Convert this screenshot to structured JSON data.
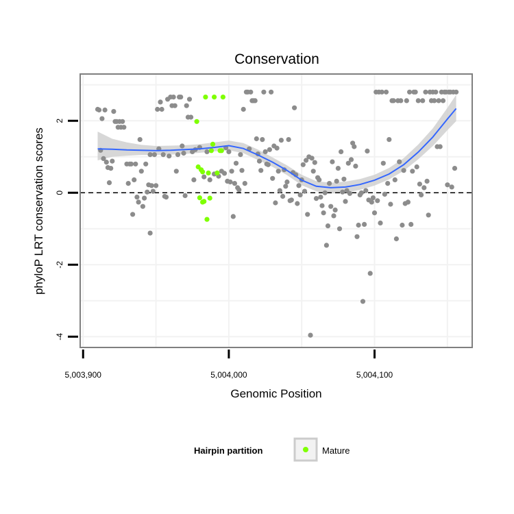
{
  "chart_data": {
    "type": "scatter",
    "title": "Conservation",
    "xlabel": "Genomic Position",
    "ylabel": "phyloP LRT conservation scores",
    "xlim": [
      5003898,
      5004167
    ],
    "ylim": [
      -4.3,
      3.3
    ],
    "x_ticks": [
      {
        "value": 5003900,
        "label": "5,003,900"
      },
      {
        "value": 5004000,
        "label": "5,004,000"
      },
      {
        "value": 5004100,
        "label": "5,004,100"
      }
    ],
    "y_ticks": [
      {
        "value": -4,
        "label": "-4"
      },
      {
        "value": -2,
        "label": "-2"
      },
      {
        "value": 0,
        "label": "0"
      },
      {
        "value": 2,
        "label": "2"
      }
    ],
    "grid": true,
    "reference_line": {
      "y": 0,
      "style": "dashed"
    },
    "colors": {
      "other": "#8c8c8c",
      "mature": "#7fff00",
      "smooth_line": "#3366ff",
      "ribbon": "#d0d0d0",
      "panel_border": "#7f7f7f",
      "grid": "#f2f2f2"
    },
    "legend": {
      "title": "Hairpin partition",
      "entries": [
        "Mature"
      ],
      "position": "bottom"
    },
    "series": [
      {
        "name": "Mature",
        "color": "#7fff00",
        "points": [
          [
            5003978,
            1.98
          ],
          [
            5003979,
            0.72
          ],
          [
            5003980,
            -0.14
          ],
          [
            5003981,
            0.64
          ],
          [
            5003982,
            0.58
          ],
          [
            5003982,
            -0.26
          ],
          [
            5003983,
            -0.24
          ],
          [
            5003984,
            2.66
          ],
          [
            5003985,
            -0.74
          ],
          [
            5003986,
            0.55
          ],
          [
            5003987,
            -0.15
          ],
          [
            5003988,
            1.17
          ],
          [
            5003989,
            1.35
          ],
          [
            5003990,
            2.66
          ],
          [
            5003992,
            0.55
          ],
          [
            5003994,
            1.17
          ],
          [
            5003995,
            1.17
          ],
          [
            5003996,
            2.66
          ]
        ]
      },
      {
        "name": "",
        "color": "#8c8c8c",
        "points": [
          [
            5003910,
            2.32
          ],
          [
            5003911,
            2.3
          ],
          [
            5003912,
            1.18
          ],
          [
            5003913,
            2.06
          ],
          [
            5003914,
            0.95
          ],
          [
            5003915,
            2.3
          ],
          [
            5003916,
            0.85
          ],
          [
            5003917,
            0.7
          ],
          [
            5003918,
            0.28
          ],
          [
            5003919,
            0.68
          ],
          [
            5003920,
            0.88
          ],
          [
            5003921,
            2.26
          ],
          [
            5003922,
            1.98
          ],
          [
            5003923,
            1.98
          ],
          [
            5003924,
            1.82
          ],
          [
            5003925,
            1.98
          ],
          [
            5003926,
            1.82
          ],
          [
            5003927,
            1.98
          ],
          [
            5003928,
            1.82
          ],
          [
            5003930,
            0.8
          ],
          [
            5003931,
            0.26
          ],
          [
            5003932,
            0.8
          ],
          [
            5003933,
            0.8
          ],
          [
            5003934,
            -0.6
          ],
          [
            5003935,
            0.36
          ],
          [
            5003936,
            0.8
          ],
          [
            5003937,
            -0.12
          ],
          [
            5003938,
            -0.26
          ],
          [
            5003939,
            1.48
          ],
          [
            5003940,
            0.6
          ],
          [
            5003941,
            -0.38
          ],
          [
            5003942,
            -0.15
          ],
          [
            5003943,
            0.8
          ],
          [
            5003944,
            0.02
          ],
          [
            5003945,
            0.22
          ],
          [
            5003946,
            1.06
          ],
          [
            5003946,
            -1.12
          ],
          [
            5003947,
            0.2
          ],
          [
            5003948,
            0.04
          ],
          [
            5003949,
            1.06
          ],
          [
            5003950,
            0.2
          ],
          [
            5003951,
            2.32
          ],
          [
            5003952,
            1.22
          ],
          [
            5003953,
            2.52
          ],
          [
            5003954,
            2.32
          ],
          [
            5003955,
            1.06
          ],
          [
            5003956,
            -0.1
          ],
          [
            5003957,
            -0.12
          ],
          [
            5003958,
            2.6
          ],
          [
            5003959,
            1.02
          ],
          [
            5003960,
            2.66
          ],
          [
            5003961,
            2.42
          ],
          [
            5003962,
            2.66
          ],
          [
            5003963,
            2.42
          ],
          [
            5003964,
            0.6
          ],
          [
            5003965,
            1.06
          ],
          [
            5003966,
            2.66
          ],
          [
            5003967,
            2.66
          ],
          [
            5003968,
            1.3
          ],
          [
            5003969,
            1.1
          ],
          [
            5003970,
            -0.08
          ],
          [
            5003971,
            2.42
          ],
          [
            5003972,
            2.1
          ],
          [
            5003973,
            2.6
          ],
          [
            5003974,
            2.1
          ],
          [
            5003975,
            1.14
          ],
          [
            5003976,
            0.36
          ],
          [
            5003977,
            1.2
          ],
          [
            5003980,
            1.26
          ],
          [
            5003983,
            0.44
          ],
          [
            5003985,
            1.14
          ],
          [
            5003987,
            0.36
          ],
          [
            5003990,
            0.52
          ],
          [
            5003993,
            0.46
          ],
          [
            5003995,
            0.6
          ],
          [
            5003997,
            0.54
          ],
          [
            5003998,
            1.25
          ],
          [
            5003999,
            0.32
          ],
          [
            5004000,
            1.14
          ],
          [
            5004001,
            0.3
          ],
          [
            5004002,
            0.6
          ],
          [
            5004003,
            -0.66
          ],
          [
            5004004,
            0.26
          ],
          [
            5004005,
            0.82
          ],
          [
            5004006,
            0.14
          ],
          [
            5004007,
            0.08
          ],
          [
            5004008,
            1.06
          ],
          [
            5004009,
            0.62
          ],
          [
            5004010,
            2.32
          ],
          [
            5004011,
            0.26
          ],
          [
            5004012,
            2.8
          ],
          [
            5004013,
            2.8
          ],
          [
            5004014,
            1.22
          ],
          [
            5004015,
            2.8
          ],
          [
            5004016,
            2.56
          ],
          [
            5004017,
            2.56
          ],
          [
            5004018,
            2.56
          ],
          [
            5004019,
            1.5
          ],
          [
            5004020,
            1.08
          ],
          [
            5004021,
            0.88
          ],
          [
            5004022,
            0.62
          ],
          [
            5004023,
            1.48
          ],
          [
            5004024,
            2.8
          ],
          [
            5004025,
            1.14
          ],
          [
            5004026,
            0.8
          ],
          [
            5004027,
            0.78
          ],
          [
            5004028,
            1.2
          ],
          [
            5004029,
            2.8
          ],
          [
            5004030,
            0.4
          ],
          [
            5004031,
            1.3
          ],
          [
            5004032,
            -0.28
          ],
          [
            5004033,
            1.24
          ],
          [
            5004034,
            0.6
          ],
          [
            5004035,
            0.06
          ],
          [
            5004036,
            1.46
          ],
          [
            5004037,
            -0.1
          ],
          [
            5004038,
            0.64
          ],
          [
            5004039,
            0.18
          ],
          [
            5004040,
            0.3
          ],
          [
            5004041,
            1.48
          ],
          [
            5004042,
            -0.22
          ],
          [
            5004043,
            -0.2
          ],
          [
            5004044,
            0.56
          ],
          [
            5004045,
            2.36
          ],
          [
            5004046,
            0.5
          ],
          [
            5004047,
            -0.3
          ],
          [
            5004048,
            0.2
          ],
          [
            5004049,
            -0.06
          ],
          [
            5004050,
            0.36
          ],
          [
            5004051,
            0.78
          ],
          [
            5004052,
            0.04
          ],
          [
            5004053,
            0.9
          ],
          [
            5004054,
            -0.6
          ],
          [
            5004055,
            1.0
          ],
          [
            5004056,
            -3.96
          ],
          [
            5004057,
            0.96
          ],
          [
            5004058,
            0.6
          ],
          [
            5004059,
            0.84
          ],
          [
            5004060,
            -0.16
          ],
          [
            5004061,
            0.42
          ],
          [
            5004062,
            0.36
          ],
          [
            5004063,
            -0.12
          ],
          [
            5004064,
            -0.36
          ],
          [
            5004065,
            -0.56
          ],
          [
            5004066,
            0.0
          ],
          [
            5004067,
            -1.46
          ],
          [
            5004068,
            -0.92
          ],
          [
            5004069,
            0.26
          ],
          [
            5004070,
            -0.38
          ],
          [
            5004071,
            0.86
          ],
          [
            5004072,
            -0.64
          ],
          [
            5004073,
            -0.48
          ],
          [
            5004074,
            0.32
          ],
          [
            5004075,
            0.68
          ],
          [
            5004076,
            -1.0
          ],
          [
            5004077,
            1.14
          ],
          [
            5004078,
            0.02
          ],
          [
            5004079,
            0.38
          ],
          [
            5004080,
            -0.24
          ],
          [
            5004081,
            0.06
          ],
          [
            5004082,
            0.82
          ],
          [
            5004083,
            -0.02
          ],
          [
            5004084,
            0.92
          ],
          [
            5004085,
            1.38
          ],
          [
            5004086,
            1.28
          ],
          [
            5004087,
            0.74
          ],
          [
            5004088,
            -1.22
          ],
          [
            5004089,
            -0.9
          ],
          [
            5004090,
            -0.06
          ],
          [
            5004091,
            0.0
          ],
          [
            5004092,
            -3.02
          ],
          [
            5004093,
            -0.88
          ],
          [
            5004094,
            0.06
          ],
          [
            5004095,
            1.16
          ],
          [
            5004096,
            -0.2
          ],
          [
            5004097,
            -2.24
          ],
          [
            5004098,
            -0.26
          ],
          [
            5004099,
            -0.14
          ],
          [
            5004100,
            -0.56
          ],
          [
            5004101,
            2.8
          ],
          [
            5004102,
            -0.22
          ],
          [
            5004103,
            2.8
          ],
          [
            5004104,
            -0.84
          ],
          [
            5004105,
            2.8
          ],
          [
            5004106,
            0.82
          ],
          [
            5004107,
            -0.04
          ],
          [
            5004108,
            2.8
          ],
          [
            5004109,
            0.26
          ],
          [
            5004110,
            1.48
          ],
          [
            5004111,
            -0.32
          ],
          [
            5004112,
            2.56
          ],
          [
            5004113,
            2.56
          ],
          [
            5004114,
            0.36
          ],
          [
            5004115,
            -1.28
          ],
          [
            5004116,
            2.56
          ],
          [
            5004117,
            0.86
          ],
          [
            5004118,
            2.56
          ],
          [
            5004119,
            -0.9
          ],
          [
            5004120,
            0.62
          ],
          [
            5004121,
            -0.3
          ],
          [
            5004122,
            2.56
          ],
          [
            5004123,
            -0.26
          ],
          [
            5004124,
            2.8
          ],
          [
            5004125,
            -0.88
          ],
          [
            5004126,
            0.6
          ],
          [
            5004127,
            2.8
          ],
          [
            5004128,
            2.8
          ],
          [
            5004129,
            0.72
          ],
          [
            5004130,
            2.56
          ],
          [
            5004131,
            0.24
          ],
          [
            5004132,
            -0.06
          ],
          [
            5004133,
            2.56
          ],
          [
            5004134,
            0.14
          ],
          [
            5004135,
            2.8
          ],
          [
            5004136,
            0.32
          ],
          [
            5004137,
            -0.62
          ],
          [
            5004138,
            2.8
          ],
          [
            5004139,
            2.56
          ],
          [
            5004140,
            2.8
          ],
          [
            5004141,
            2.56
          ],
          [
            5004142,
            2.8
          ],
          [
            5004143,
            1.28
          ],
          [
            5004144,
            2.56
          ],
          [
            5004145,
            1.28
          ],
          [
            5004146,
            2.8
          ],
          [
            5004147,
            2.56
          ],
          [
            5004148,
            2.8
          ],
          [
            5004149,
            2.8
          ],
          [
            5004150,
            0.22
          ],
          [
            5004151,
            2.8
          ],
          [
            5004152,
            2.8
          ],
          [
            5004153,
            0.16
          ],
          [
            5004154,
            2.8
          ],
          [
            5004155,
            0.68
          ],
          [
            5004156,
            2.8
          ]
        ]
      }
    ],
    "smooth": {
      "x": [
        5003910,
        5003920,
        5003930,
        5003940,
        5003950,
        5003960,
        5003970,
        5003980,
        5003990,
        5004000,
        5004010,
        5004020,
        5004030,
        5004040,
        5004050,
        5004060,
        5004070,
        5004080,
        5004090,
        5004100,
        5004110,
        5004120,
        5004130,
        5004140,
        5004150,
        5004156
      ],
      "y": [
        1.22,
        1.21,
        1.19,
        1.18,
        1.17,
        1.18,
        1.2,
        1.22,
        1.26,
        1.31,
        1.23,
        1.05,
        0.85,
        0.62,
        0.35,
        0.18,
        0.14,
        0.16,
        0.23,
        0.35,
        0.52,
        0.78,
        1.13,
        1.55,
        2.05,
        2.34
      ],
      "lower": [
        0.9,
        1.0,
        1.03,
        1.05,
        1.05,
        1.06,
        1.08,
        1.11,
        1.15,
        1.18,
        1.1,
        0.91,
        0.72,
        0.49,
        0.21,
        0.04,
        -0.02,
        0.0,
        0.08,
        0.2,
        0.37,
        0.61,
        0.93,
        1.3,
        1.74,
        1.99
      ],
      "upper": [
        1.7,
        1.5,
        1.4,
        1.33,
        1.3,
        1.31,
        1.32,
        1.35,
        1.4,
        1.45,
        1.38,
        1.2,
        0.98,
        0.76,
        0.5,
        0.32,
        0.28,
        0.31,
        0.38,
        0.5,
        0.69,
        0.96,
        1.34,
        1.79,
        2.36,
        2.72
      ]
    }
  }
}
